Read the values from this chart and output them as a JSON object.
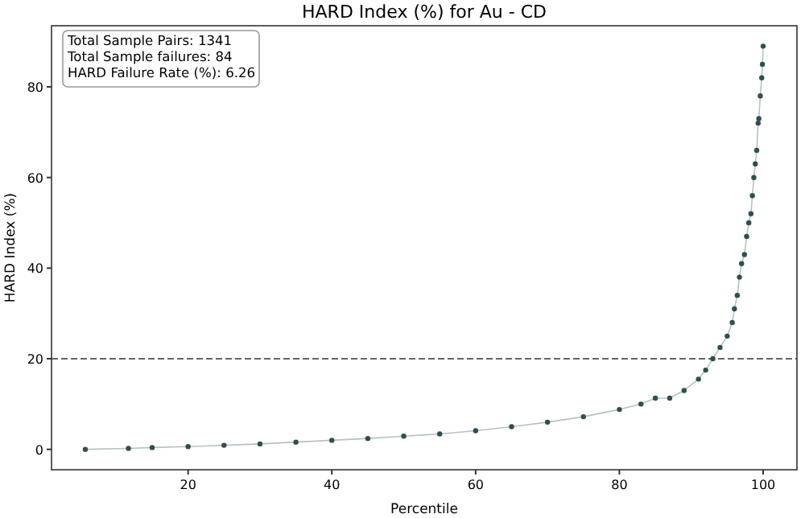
{
  "chart_data": {
    "type": "line",
    "title": "HARD Index (%) for Au - CD",
    "xlabel": "Percentile",
    "ylabel": "HARD Index (%)",
    "annotations": [
      "Total Sample Pairs: 1341",
      "Total Sample failures: 84",
      "HARD Failure Rate (%): 6.26"
    ],
    "x": [
      5.7,
      11.7,
      15,
      20,
      25,
      30,
      35,
      40,
      45,
      50,
      55,
      60,
      65,
      70,
      75,
      80,
      83,
      85,
      87,
      89,
      91,
      92,
      93,
      94,
      95,
      95.7,
      96,
      96.4,
      96.7,
      97,
      97.4,
      97.7,
      98,
      98.3,
      98.5,
      98.7,
      98.9,
      99.1,
      99.3,
      99.4,
      99.6,
      99.8,
      99.9,
      100
    ],
    "series": [
      {
        "color": "#2f4f4f",
        "values": [
          0,
          0.2,
          0.4,
          0.6,
          0.9,
          1.2,
          1.6,
          2.0,
          2.4,
          2.9,
          3.4,
          4.1,
          5.0,
          6.0,
          7.2,
          8.8,
          10,
          11.3,
          11.3,
          13,
          15.5,
          17.5,
          20,
          22.5,
          25,
          28,
          31,
          34,
          38,
          41,
          43,
          47,
          50,
          52,
          56,
          60,
          63,
          66,
          72,
          73,
          78,
          82,
          85,
          89
        ]
      }
    ],
    "xlim": [
      1,
      104.7
    ],
    "ylim": [
      -4.5,
      93.5
    ],
    "xticks": [
      20,
      40,
      60,
      80,
      100
    ],
    "yticks": [
      0,
      20,
      40,
      60,
      80
    ],
    "ref_lines": [
      {
        "axis": "y",
        "value": 20,
        "color": "#333333",
        "line_style": "dashed"
      }
    ],
    "grid": false,
    "marker": "circle",
    "line_style": "solid"
  }
}
